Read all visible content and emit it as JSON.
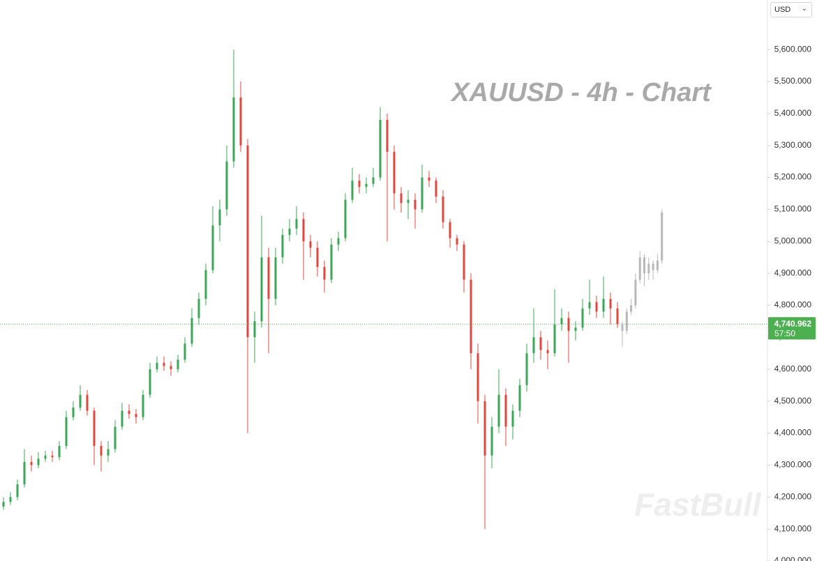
{
  "chart_data": {
    "type": "candlestick",
    "title": "XAUUSD - 4h - Chart",
    "watermark": "FastBull",
    "currency": "USD",
    "ylim": [
      4000,
      5755
    ],
    "yticks": [
      {
        "value": 4000,
        "label": "4,000.000"
      },
      {
        "value": 4100,
        "label": "4,100.000"
      },
      {
        "value": 4200,
        "label": "4,200.000"
      },
      {
        "value": 4300,
        "label": "4,300.000"
      },
      {
        "value": 4400,
        "label": "4,400.000"
      },
      {
        "value": 4500,
        "label": "4,500.000"
      },
      {
        "value": 4600,
        "label": "4,600.000"
      },
      {
        "value": 4700,
        "label": "4,700.000"
      },
      {
        "value": 4800,
        "label": "4,800.000"
      },
      {
        "value": 4900,
        "label": "4,900.000"
      },
      {
        "value": 5000,
        "label": "5,000.000"
      },
      {
        "value": 5100,
        "label": "5,100.000"
      },
      {
        "value": 5200,
        "label": "5,200.000"
      },
      {
        "value": 5300,
        "label": "5,300.000"
      },
      {
        "value": 5400,
        "label": "5,400.000"
      },
      {
        "value": 5500,
        "label": "5,500.000"
      },
      {
        "value": 5600,
        "label": "5,600.000"
      }
    ],
    "up_color": "#3aa757",
    "down_color": "#e0463c",
    "candles": [
      [
        4170,
        4200,
        4160,
        4185
      ],
      [
        4185,
        4215,
        4175,
        4200
      ],
      [
        4200,
        4255,
        4190,
        4240
      ],
      [
        4240,
        4350,
        4230,
        4310
      ],
      [
        4310,
        4330,
        4280,
        4300
      ],
      [
        4300,
        4340,
        4290,
        4320
      ],
      [
        4320,
        4345,
        4310,
        4330
      ],
      [
        4330,
        4345,
        4310,
        4325
      ],
      [
        4325,
        4375,
        4315,
        4360
      ],
      [
        4360,
        4470,
        4350,
        4450
      ],
      [
        4450,
        4500,
        4440,
        4480
      ],
      [
        4480,
        4550,
        4470,
        4520
      ],
      [
        4520,
        4535,
        4455,
        4470
      ],
      [
        4470,
        4480,
        4300,
        4360
      ],
      [
        4360,
        4375,
        4280,
        4330
      ],
      [
        4330,
        4375,
        4310,
        4350
      ],
      [
        4350,
        4440,
        4340,
        4420
      ],
      [
        4420,
        4495,
        4410,
        4470
      ],
      [
        4470,
        4490,
        4445,
        4460
      ],
      [
        4460,
        4475,
        4430,
        4450
      ],
      [
        4450,
        4535,
        4440,
        4520
      ],
      [
        4520,
        4620,
        4510,
        4600
      ],
      [
        4600,
        4640,
        4590,
        4620
      ],
      [
        4620,
        4640,
        4595,
        4610
      ],
      [
        4610,
        4625,
        4580,
        4600
      ],
      [
        4600,
        4645,
        4590,
        4630
      ],
      [
        4630,
        4700,
        4620,
        4680
      ],
      [
        4680,
        4790,
        4670,
        4760
      ],
      [
        4760,
        4840,
        4740,
        4820
      ],
      [
        4820,
        4930,
        4800,
        4910
      ],
      [
        4910,
        5110,
        4900,
        5050
      ],
      [
        5050,
        5130,
        5000,
        5100
      ],
      [
        5100,
        5300,
        5080,
        5250
      ],
      [
        5250,
        5600,
        5230,
        5450
      ],
      [
        5450,
        5500,
        5280,
        5300
      ],
      [
        5300,
        5320,
        4400,
        4700
      ],
      [
        4700,
        4780,
        4620,
        4750
      ],
      [
        4750,
        5080,
        4730,
        4950
      ],
      [
        4950,
        4980,
        4650,
        4820
      ],
      [
        4820,
        4980,
        4800,
        4950
      ],
      [
        4950,
        5040,
        4930,
        5020
      ],
      [
        5020,
        5070,
        5000,
        5040
      ],
      [
        5040,
        5110,
        5020,
        5070
      ],
      [
        5070,
        5090,
        4880,
        5000
      ],
      [
        5000,
        5020,
        4950,
        4980
      ],
      [
        4980,
        5000,
        4890,
        4920
      ],
      [
        4920,
        4940,
        4840,
        4880
      ],
      [
        4880,
        5010,
        4870,
        4990
      ],
      [
        4990,
        5030,
        4970,
        5010
      ],
      [
        5010,
        5150,
        5000,
        5130
      ],
      [
        5130,
        5230,
        5120,
        5190
      ],
      [
        5190,
        5210,
        5150,
        5170
      ],
      [
        5170,
        5200,
        5150,
        5180
      ],
      [
        5180,
        5230,
        5170,
        5200
      ],
      [
        5200,
        5420,
        5190,
        5380
      ],
      [
        5380,
        5400,
        5000,
        5280
      ],
      [
        5280,
        5300,
        5100,
        5150
      ],
      [
        5150,
        5170,
        5090,
        5120
      ],
      [
        5120,
        5160,
        5070,
        5130
      ],
      [
        5130,
        5150,
        5040,
        5100
      ],
      [
        5100,
        5240,
        5090,
        5200
      ],
      [
        5200,
        5220,
        5170,
        5190
      ],
      [
        5190,
        5200,
        5120,
        5140
      ],
      [
        5140,
        5160,
        5040,
        5060
      ],
      [
        5060,
        5070,
        4980,
        5010
      ],
      [
        5010,
        5020,
        4970,
        4990
      ],
      [
        4990,
        5000,
        4840,
        4880
      ],
      [
        4880,
        4900,
        4600,
        4650
      ],
      [
        4650,
        4680,
        4430,
        4500
      ],
      [
        4500,
        4520,
        4100,
        4330
      ],
      [
        4330,
        4450,
        4290,
        4420
      ],
      [
        4420,
        4600,
        4400,
        4520
      ],
      [
        4520,
        4540,
        4360,
        4420
      ],
      [
        4420,
        4490,
        4380,
        4470
      ],
      [
        4470,
        4570,
        4450,
        4550
      ],
      [
        4550,
        4680,
        4530,
        4650
      ],
      [
        4650,
        4790,
        4620,
        4700
      ],
      [
        4700,
        4720,
        4630,
        4660
      ],
      [
        4660,
        4690,
        4600,
        4650
      ],
      [
        4650,
        4850,
        4640,
        4740
      ],
      [
        4740,
        4790,
        4720,
        4760
      ],
      [
        4760,
        4780,
        4620,
        4720
      ],
      [
        4720,
        4750,
        4690,
        4730
      ],
      [
        4730,
        4820,
        4720,
        4790
      ],
      [
        4790,
        4880,
        4770,
        4810
      ],
      [
        4810,
        4830,
        4760,
        4780
      ],
      [
        4780,
        4890,
        4760,
        4820
      ],
      [
        4820,
        4840,
        4740,
        4790
      ],
      [
        4790,
        4810,
        4730,
        4740.962
      ]
    ],
    "projection": {
      "color": "#b8b8b8",
      "candles": [
        [
          4740,
          4750,
          4670,
          4720
        ],
        [
          4720,
          4790,
          4710,
          4780
        ],
        [
          4780,
          4820,
          4770,
          4800
        ],
        [
          4800,
          4900,
          4790,
          4880
        ],
        [
          4880,
          4970,
          4870,
          4950
        ],
        [
          4950,
          4960,
          4860,
          4900
        ],
        [
          4900,
          4950,
          4880,
          4930
        ],
        [
          4930,
          4940,
          4880,
          4910
        ],
        [
          4910,
          4960,
          4900,
          4940
        ],
        [
          4940,
          5100,
          4930,
          5090
        ]
      ]
    },
    "last_price": {
      "value": 4740.962,
      "label": "4,740.962",
      "countdown": "57:50",
      "color": "#4caf50"
    }
  }
}
